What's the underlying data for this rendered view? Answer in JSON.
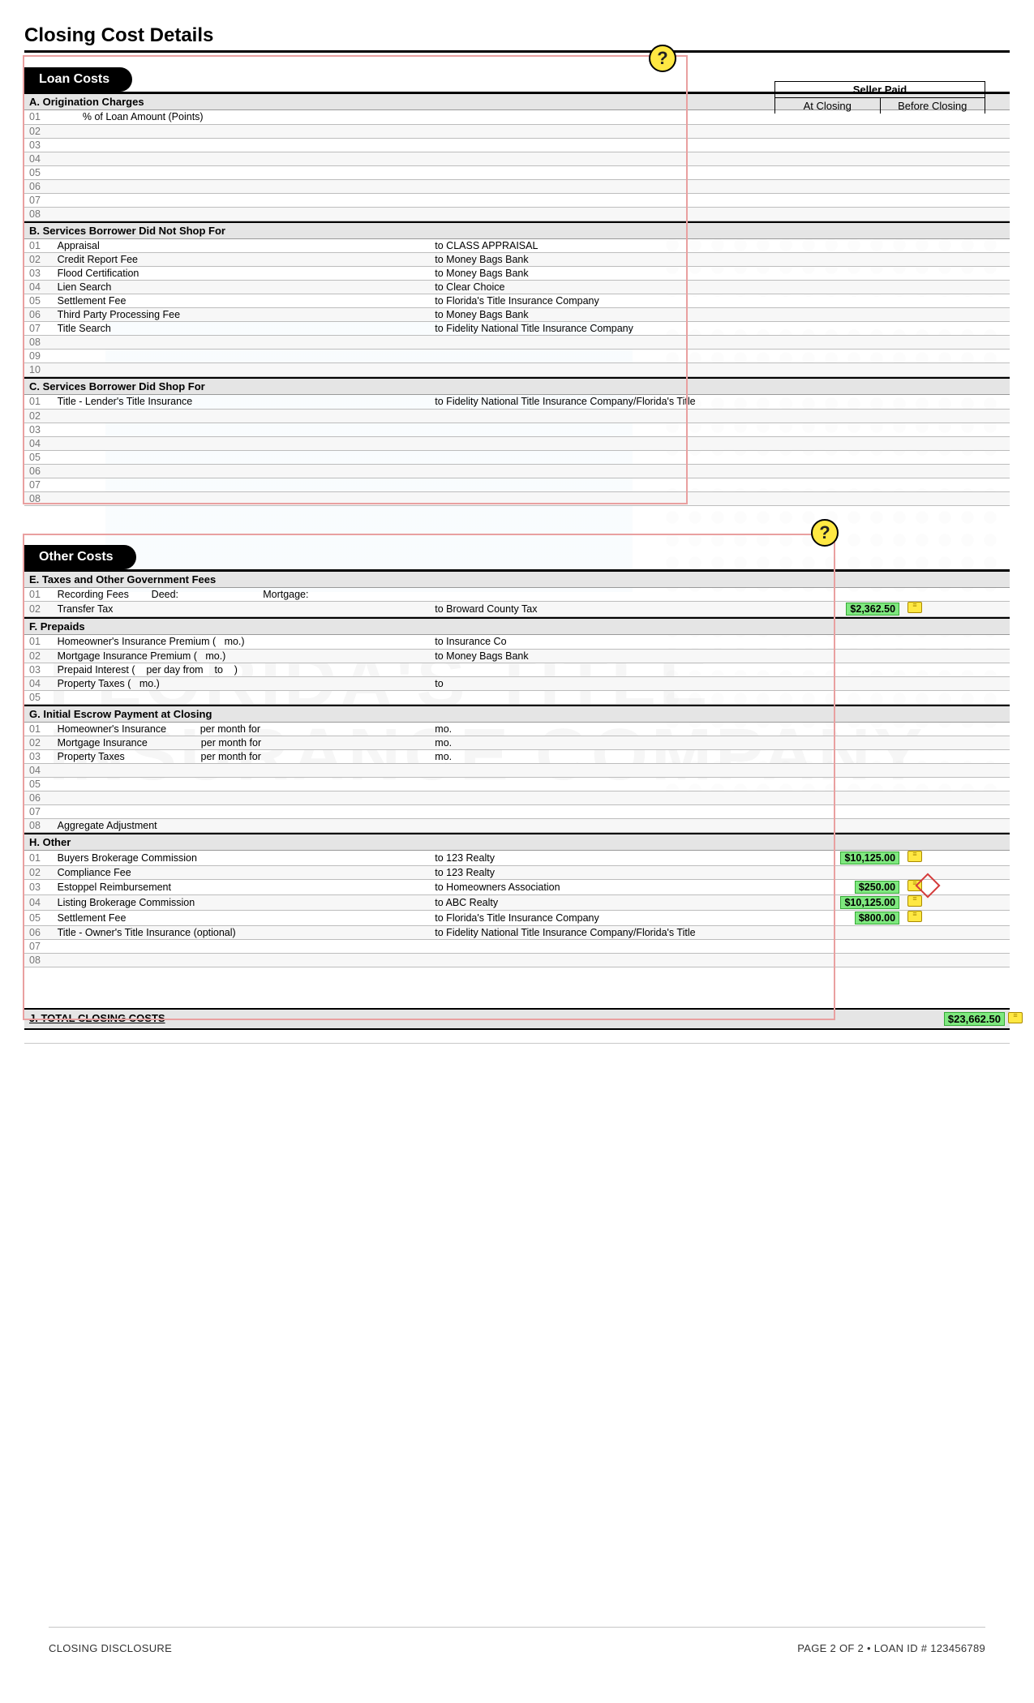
{
  "title": "Closing Cost Details",
  "seller_paid": {
    "header": "Seller Paid",
    "col1": "At Closing",
    "col2": "Before Closing"
  },
  "loan_costs": {
    "pill": "Loan Costs",
    "A": {
      "header": "A. Origination Charges",
      "rows": [
        {
          "n": "01",
          "desc": "         % of Loan Amount (Points)"
        },
        {
          "n": "02"
        },
        {
          "n": "03"
        },
        {
          "n": "04"
        },
        {
          "n": "05"
        },
        {
          "n": "06"
        },
        {
          "n": "07"
        },
        {
          "n": "08"
        }
      ]
    },
    "B": {
      "header": "B. Services Borrower Did Not Shop For",
      "rows": [
        {
          "n": "01",
          "desc": "Appraisal",
          "payee": "to CLASS APPRAISAL"
        },
        {
          "n": "02",
          "desc": "Credit Report Fee",
          "payee": "to Money Bags Bank"
        },
        {
          "n": "03",
          "desc": "Flood Certification",
          "payee": "to Money Bags Bank"
        },
        {
          "n": "04",
          "desc": "Lien Search",
          "payee": "to Clear Choice"
        },
        {
          "n": "05",
          "desc": "Settlement Fee",
          "payee": "to Florida's Title Insurance Company"
        },
        {
          "n": "06",
          "desc": "Third Party Processing Fee",
          "payee": "to Money Bags Bank"
        },
        {
          "n": "07",
          "desc": "Title Search",
          "payee": "to Fidelity National Title Insurance Company"
        },
        {
          "n": "08"
        },
        {
          "n": "09"
        },
        {
          "n": "10"
        }
      ]
    },
    "C": {
      "header": "C. Services Borrower Did Shop For",
      "rows": [
        {
          "n": "01",
          "desc": "Title - Lender's Title Insurance",
          "payee": "to Fidelity National Title Insurance Company/Florida's Title"
        },
        {
          "n": "02"
        },
        {
          "n": "03"
        },
        {
          "n": "04"
        },
        {
          "n": "05"
        },
        {
          "n": "06"
        },
        {
          "n": "07"
        },
        {
          "n": "08"
        }
      ]
    }
  },
  "other_costs": {
    "pill": "Other Costs",
    "E": {
      "header": "E. Taxes and Other Government Fees",
      "rows": [
        {
          "n": "01",
          "desc": "Recording Fees        Deed:                              Mortgage:"
        },
        {
          "n": "02",
          "desc": "Transfer Tax",
          "payee": "to Broward County Tax",
          "amt": "$2,362.50",
          "note": true
        }
      ]
    },
    "F": {
      "header": "F. Prepaids",
      "rows": [
        {
          "n": "01",
          "desc": "Homeowner's Insurance Premium (   mo.)",
          "payee": "to Insurance Co"
        },
        {
          "n": "02",
          "desc": "Mortgage Insurance Premium (   mo.)",
          "payee": "to Money Bags Bank"
        },
        {
          "n": "03",
          "desc": "Prepaid Interest (    per day from    to    )"
        },
        {
          "n": "04",
          "desc": "Property Taxes (   mo.)",
          "payee": "to"
        },
        {
          "n": "05"
        }
      ]
    },
    "G": {
      "header": "G. Initial Escrow Payment at Closing",
      "rows": [
        {
          "n": "01",
          "desc": "Homeowner's Insurance            per month for",
          "payee": "mo."
        },
        {
          "n": "02",
          "desc": "Mortgage Insurance                   per month for",
          "payee": "mo."
        },
        {
          "n": "03",
          "desc": "Property Taxes                           per month for",
          "payee": "mo."
        },
        {
          "n": "04"
        },
        {
          "n": "05"
        },
        {
          "n": "06"
        },
        {
          "n": "07"
        },
        {
          "n": "08",
          "desc": "Aggregate Adjustment"
        }
      ]
    },
    "H": {
      "header": "H. Other",
      "rows": [
        {
          "n": "01",
          "desc": "Buyers Brokerage Commission",
          "payee": "to 123 Realty",
          "amt": "$10,125.00",
          "note": true
        },
        {
          "n": "02",
          "desc": "Compliance Fee",
          "payee": "to 123 Realty"
        },
        {
          "n": "03",
          "desc": "Estoppel Reimbursement",
          "payee": "to Homeowners Association",
          "amt": "$250.00",
          "note": true,
          "diamond": true
        },
        {
          "n": "04",
          "desc": "Listing Brokerage Commission",
          "payee": "to ABC Realty",
          "amt": "$10,125.00",
          "note": true
        },
        {
          "n": "05",
          "desc": "Settlement Fee",
          "payee": "to Florida's Title Insurance Company",
          "amt": "$800.00",
          "note": true
        },
        {
          "n": "06",
          "desc": "Title - Owner's Title Insurance (optional)",
          "payee": "to Fidelity National Title Insurance Company/Florida's Title"
        },
        {
          "n": "07"
        },
        {
          "n": "08"
        }
      ]
    }
  },
  "total": {
    "label": "J. TOTAL CLOSING COSTS",
    "amt": "$23,662.50"
  },
  "footer": {
    "left": "CLOSING DISCLOSURE",
    "right": "PAGE 2 OF 2 • LOAN ID # 123456789"
  },
  "colors": {
    "highlight_green": "#7fe87f",
    "note_yellow": "#ffe843",
    "box_pink": "#e9a0a0"
  }
}
